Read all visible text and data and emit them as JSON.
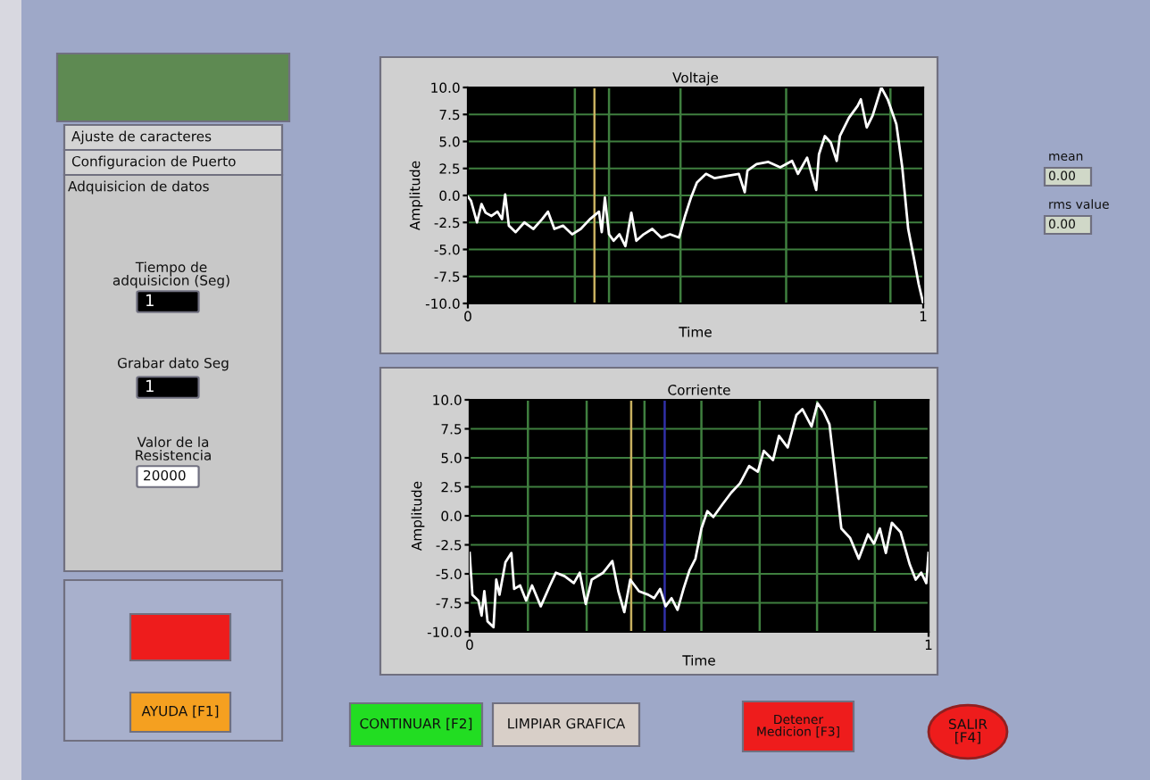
{
  "chart_data": [
    {
      "type": "line",
      "title": "Voltaje",
      "xlabel": "Time",
      "ylabel": "Amplitude",
      "xlim": [
        0,
        1
      ],
      "xticks": [
        0,
        1
      ],
      "ylim": [
        -10,
        10
      ],
      "yticks": [
        {
          "value": -10,
          "label": "-10.0"
        },
        {
          "value": -7.5,
          "label": "-7.5"
        },
        {
          "value": -5,
          "label": "-5.0"
        },
        {
          "value": -2.5,
          "label": "-2.5"
        },
        {
          "value": 0,
          "label": "0.0"
        },
        {
          "value": 2.5,
          "label": "2.5"
        },
        {
          "value": 5,
          "label": "5.0"
        },
        {
          "value": 7.5,
          "label": "7.5"
        },
        {
          "value": 10,
          "label": "10.0"
        }
      ],
      "grid": "y",
      "marker": "none",
      "line_style": "solid",
      "ref_lines": [
        {
          "axis": "x",
          "value": 0.235,
          "color": "#3f7f3f"
        },
        {
          "axis": "x",
          "value": 0.278,
          "color": "#c8b060"
        },
        {
          "axis": "x",
          "value": 0.31,
          "color": "#3f7f3f"
        },
        {
          "axis": "x",
          "value": 0.467,
          "color": "#3f7f3f"
        },
        {
          "axis": "x",
          "value": 0.699,
          "color": "#3f7f3f"
        },
        {
          "axis": "x",
          "value": 0.928,
          "color": "#3f7f3f"
        }
      ],
      "series": [
        {
          "color": "#ffffff",
          "x": [
            0,
            0.007,
            0.02,
            0.03,
            0.039,
            0.052,
            0.065,
            0.075,
            0.082,
            0.09,
            0.105,
            0.124,
            0.144,
            0.163,
            0.176,
            0.19,
            0.209,
            0.229,
            0.248,
            0.268,
            0.288,
            0.294,
            0.301,
            0.31,
            0.32,
            0.333,
            0.346,
            0.359,
            0.37,
            0.386,
            0.405,
            0.425,
            0.444,
            0.464,
            0.477,
            0.49,
            0.503,
            0.523,
            0.542,
            0.569,
            0.595,
            0.608,
            0.614,
            0.634,
            0.66,
            0.686,
            0.712,
            0.725,
            0.745,
            0.765,
            0.771,
            0.784,
            0.797,
            0.81,
            0.817,
            0.837,
            0.856,
            0.863,
            0.876,
            0.889,
            0.908,
            0.922,
            0.941,
            0.954,
            0.967,
            0.98,
            0.99,
            1.0
          ],
          "values": [
            -0.1,
            -0.5,
            -2.5,
            -0.8,
            -1.6,
            -1.9,
            -1.5,
            -2.2,
            0.1,
            -2.8,
            -3.4,
            -2.5,
            -3.1,
            -2.2,
            -1.5,
            -3.1,
            -2.8,
            -3.6,
            -3.1,
            -2.2,
            -1.5,
            -3.4,
            -0.2,
            -3.6,
            -4.2,
            -3.6,
            -4.7,
            -1.6,
            -4.2,
            -3.6,
            -3.1,
            -3.9,
            -3.6,
            -3.9,
            -1.9,
            -0.2,
            1.2,
            2.0,
            1.6,
            1.8,
            2.0,
            0.3,
            2.3,
            2.9,
            3.1,
            2.6,
            3.2,
            2.0,
            3.5,
            0.5,
            3.8,
            5.5,
            4.9,
            3.2,
            5.5,
            7.2,
            8.3,
            8.9,
            6.3,
            7.4,
            10.0,
            8.9,
            6.6,
            2.6,
            -3.1,
            -5.9,
            -8.2,
            -10.0
          ]
        }
      ]
    },
    {
      "type": "line",
      "title": "Corriente",
      "xlabel": "Time",
      "ylabel": "Amplitude",
      "xlim": [
        0,
        1
      ],
      "xticks": [
        0,
        1
      ],
      "ylim": [
        -10,
        10
      ],
      "yticks": [
        {
          "value": -10,
          "label": "-10.0"
        },
        {
          "value": -7.5,
          "label": "-7.5"
        },
        {
          "value": -5,
          "label": "-5.0"
        },
        {
          "value": -2.5,
          "label": "-2.5"
        },
        {
          "value": 0,
          "label": "0.0"
        },
        {
          "value": 2.5,
          "label": "2.5"
        },
        {
          "value": 5,
          "label": "5.0"
        },
        {
          "value": 7.5,
          "label": "7.5"
        },
        {
          "value": 10,
          "label": "10.0"
        }
      ],
      "grid": "y",
      "marker": "none",
      "line_style": "solid",
      "ref_lines": [
        {
          "axis": "x",
          "value": 0.127,
          "color": "#3f7f3f"
        },
        {
          "axis": "x",
          "value": 0.255,
          "color": "#3f7f3f"
        },
        {
          "axis": "x",
          "value": 0.352,
          "color": "#c8b060"
        },
        {
          "axis": "x",
          "value": 0.381,
          "color": "#3f7f3f"
        },
        {
          "axis": "x",
          "value": 0.425,
          "color": "#3030a8"
        },
        {
          "axis": "x",
          "value": 0.505,
          "color": "#3f7f3f"
        },
        {
          "axis": "x",
          "value": 0.632,
          "color": "#3f7f3f"
        },
        {
          "axis": "x",
          "value": 0.757,
          "color": "#3f7f3f"
        },
        {
          "axis": "x",
          "value": 0.883,
          "color": "#3f7f3f"
        }
      ],
      "series": [
        {
          "color": "#ffffff",
          "x": [
            0,
            0.006,
            0.019,
            0.026,
            0.032,
            0.039,
            0.052,
            0.058,
            0.065,
            0.078,
            0.091,
            0.097,
            0.11,
            0.123,
            0.136,
            0.155,
            0.175,
            0.188,
            0.207,
            0.227,
            0.24,
            0.253,
            0.266,
            0.291,
            0.311,
            0.324,
            0.337,
            0.35,
            0.369,
            0.389,
            0.402,
            0.415,
            0.427,
            0.44,
            0.453,
            0.466,
            0.479,
            0.492,
            0.505,
            0.518,
            0.531,
            0.551,
            0.57,
            0.589,
            0.609,
            0.628,
            0.641,
            0.661,
            0.674,
            0.693,
            0.712,
            0.725,
            0.745,
            0.758,
            0.771,
            0.784,
            0.797,
            0.81,
            0.829,
            0.848,
            0.868,
            0.881,
            0.894,
            0.907,
            0.92,
            0.939,
            0.959,
            0.972,
            0.984,
            0.995,
            1.0
          ],
          "values": [
            -3.2,
            -6.8,
            -7.3,
            -8.6,
            -6.5,
            -9.1,
            -9.6,
            -5.5,
            -6.8,
            -4.0,
            -3.2,
            -6.3,
            -6.0,
            -7.3,
            -6.0,
            -7.8,
            -6.0,
            -4.9,
            -5.2,
            -5.8,
            -4.9,
            -7.6,
            -5.5,
            -4.9,
            -3.9,
            -6.5,
            -8.3,
            -5.5,
            -6.5,
            -6.8,
            -7.1,
            -6.3,
            -7.8,
            -7.1,
            -8.1,
            -6.3,
            -4.7,
            -3.7,
            -1.1,
            0.4,
            -0.1,
            1.0,
            2.0,
            2.8,
            4.3,
            3.8,
            5.6,
            4.8,
            6.9,
            5.9,
            8.7,
            9.2,
            7.7,
            9.7,
            9.0,
            7.9,
            3.5,
            -1.1,
            -1.9,
            -3.7,
            -1.6,
            -2.4,
            -1.1,
            -3.2,
            -0.6,
            -1.4,
            -4.2,
            -5.5,
            -4.9,
            -5.8,
            -3.2
          ]
        }
      ]
    },
    {
      "type": "other",
      "annotations": [
        "Ajuste de caracteres",
        "Configuracion de Puerto",
        "Adquisicion de datos",
        "Tiempo de\nadquisicion (Seg)",
        "1",
        "Grabar dato Seg",
        "1",
        "Valor de la\nResistencia",
        "20000",
        "AYUDA [F1]",
        "CONTINUAR [F2]",
        "LIMPIAR GRAFICA",
        "Detener\nMedicion [F3]",
        "SALIR\n[F4]",
        "mean",
        "0.00",
        "rms value",
        "0.00"
      ]
    }
  ]
}
